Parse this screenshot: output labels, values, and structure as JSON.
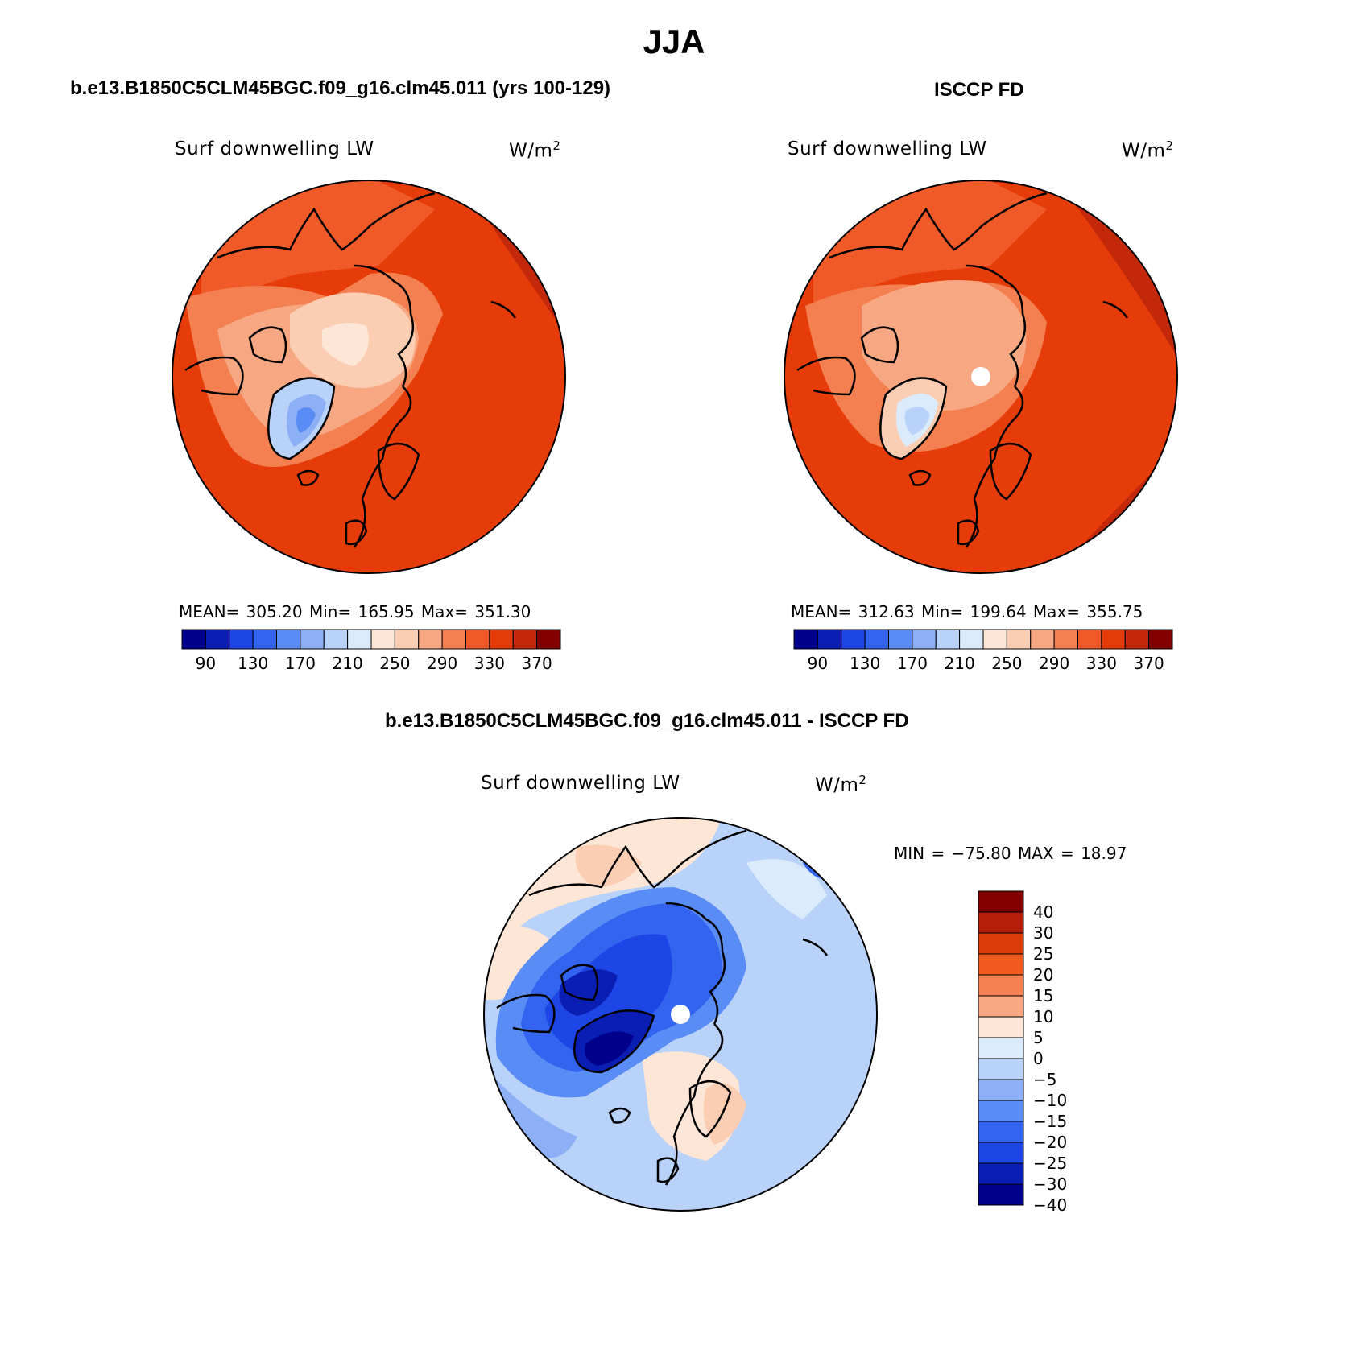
{
  "title": "JJA",
  "panels": [
    {
      "id": "model",
      "header": "b.e13.B1850C5CLM45BGC.f09_g16.clm45.011 (yrs 100-129)",
      "variable": "Surf downwelling LW",
      "units": "W/m",
      "units_sup": "2",
      "stats": "MEAN= 305.20   Min= 165.95   Max= 351.30"
    },
    {
      "id": "obs",
      "header": "ISCCP FD",
      "variable": "Surf downwelling LW",
      "units": "W/m",
      "units_sup": "2",
      "stats": "MEAN= 312.63   Min= 199.64   Max= 355.75"
    },
    {
      "id": "diff",
      "header": "b.e13.B1850C5CLM45BGC.f09_g16.clm45.011 - ISCCP FD",
      "variable": "Surf downwelling LW",
      "units": "W/m",
      "units_sup": "2",
      "stats": "MIN = −75.80 MAX =   18.97"
    }
  ],
  "abs_colorbar": {
    "colors": [
      "#00008c",
      "#0a1eb4",
      "#1e46e6",
      "#3264f0",
      "#5a8cf5",
      "#8caff5",
      "#b9d2fa",
      "#dcebfc",
      "#fde6d5",
      "#fbcdb2",
      "#f7a882",
      "#f47f50",
      "#f05a28",
      "#e63c0a",
      "#c3280a",
      "#820000"
    ],
    "tick_labels": [
      "90",
      "130",
      "170",
      "210",
      "250",
      "290",
      "330",
      "370"
    ]
  },
  "diff_colorbar": {
    "colors": [
      "#820000",
      "#b41e0a",
      "#dc3c0a",
      "#f05a1e",
      "#f47f50",
      "#f7a882",
      "#fde6d5",
      "#dcebfc",
      "#b9d2fa",
      "#8caff5",
      "#5a8cf5",
      "#3264f0",
      "#1e46e6",
      "#0a1eb4",
      "#00008c"
    ],
    "tick_labels": [
      "40",
      "30",
      "25",
      "20",
      "15",
      "10",
      "5",
      "0",
      "−5",
      "−10",
      "−15",
      "−20",
      "−25",
      "−30",
      "−40"
    ]
  }
}
